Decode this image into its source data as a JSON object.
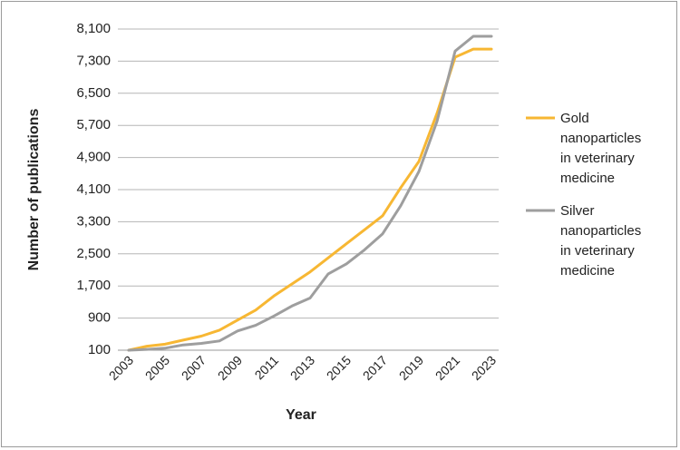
{
  "chart_data": {
    "type": "line",
    "title": "",
    "xlabel": "Year",
    "ylabel": "Number of publications",
    "x": [
      2003,
      2004,
      2005,
      2006,
      2007,
      2008,
      2009,
      2010,
      2011,
      2012,
      2013,
      2014,
      2015,
      2016,
      2017,
      2018,
      2019,
      2020,
      2021,
      2022,
      2023
    ],
    "x_tick_labels": [
      "2003",
      "2005",
      "2007",
      "2009",
      "2011",
      "2013",
      "2015",
      "2017",
      "2019",
      "2021",
      "2023"
    ],
    "y_tick_labels": [
      "100",
      "900",
      "1,700",
      "2,500",
      "3,300",
      "4,100",
      "4,900",
      "5,700",
      "6,500",
      "7,300",
      "8,100"
    ],
    "y_ticks": [
      100,
      900,
      1700,
      2500,
      3300,
      4100,
      4900,
      5700,
      6500,
      7300,
      8100
    ],
    "ylim": [
      100,
      8100
    ],
    "xlim": [
      2003,
      2023
    ],
    "grid": "horizontal",
    "legend_position": "right",
    "series": [
      {
        "name": "Gold nanoparticles in veterinary medicine",
        "name_lines": [
          "Gold",
          "nanoparticles",
          "in veterinary",
          "medicine"
        ],
        "color": "#f7b733",
        "values": [
          100,
          200,
          250,
          350,
          450,
          600,
          850,
          1100,
          1450,
          1750,
          2050,
          2400,
          2750,
          3100,
          3450,
          4150,
          4800,
          6000,
          7400,
          7600,
          7600
        ]
      },
      {
        "name": "Silver nanoparticles in veterinary medicine",
        "name_lines": [
          "Silver",
          "nanoparticles",
          "in veterinary",
          "medicine"
        ],
        "color": "#9e9e9e",
        "values": [
          100,
          120,
          150,
          230,
          270,
          330,
          580,
          720,
          950,
          1200,
          1400,
          2000,
          2250,
          2600,
          3000,
          3700,
          4550,
          5800,
          7550,
          7920,
          7920
        ]
      }
    ]
  }
}
